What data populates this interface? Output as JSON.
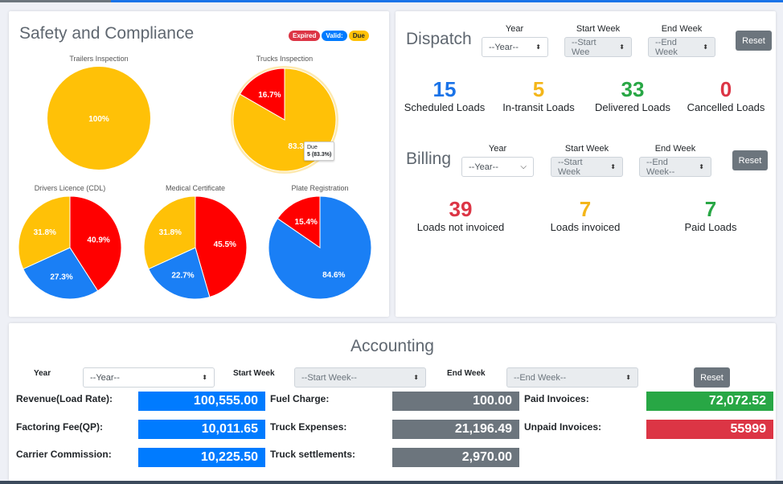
{
  "safety": {
    "title": "Safety and Compliance",
    "badges": [
      {
        "label": "Expired",
        "color": "#dc3545"
      },
      {
        "label": "Valid:",
        "color": "#007bff"
      },
      {
        "label": "Due",
        "color": "#ffc107"
      }
    ],
    "tooltip": {
      "title": "Due",
      "value": "5 (83.3%)"
    }
  },
  "chart_data": [
    {
      "type": "pie",
      "title": "Trailers Inspection",
      "slices": [
        {
          "label": "Due",
          "value": 100,
          "color": "#ffc107",
          "text": "100%"
        }
      ]
    },
    {
      "type": "pie",
      "title": "Trucks Inspection",
      "slices": [
        {
          "label": "Due",
          "value": 83.3,
          "color": "#ffc107",
          "text": "83.3%"
        },
        {
          "label": "Expired",
          "value": 16.7,
          "color": "#ff0000",
          "text": "16.7%"
        }
      ]
    },
    {
      "type": "pie",
      "title": "Drivers Licence (CDL)",
      "slices": [
        {
          "label": "Expired",
          "value": 40.9,
          "color": "#ff0000",
          "text": "40.9%"
        },
        {
          "label": "Valid",
          "value": 27.3,
          "color": "#1a7ff5",
          "text": "27.3%"
        },
        {
          "label": "Due",
          "value": 31.8,
          "color": "#ffc107",
          "text": "31.8%"
        }
      ]
    },
    {
      "type": "pie",
      "title": "Medical Certificate",
      "slices": [
        {
          "label": "Expired",
          "value": 45.5,
          "color": "#ff0000",
          "text": "45.5%"
        },
        {
          "label": "Valid",
          "value": 22.7,
          "color": "#1a7ff5",
          "text": "22.7%"
        },
        {
          "label": "Due",
          "value": 31.8,
          "color": "#ffc107",
          "text": "31.8%"
        }
      ]
    },
    {
      "type": "pie",
      "title": "Plate Registration",
      "slices": [
        {
          "label": "Valid",
          "value": 84.6,
          "color": "#1a7ff5",
          "text": "84.6%"
        },
        {
          "label": "Expired",
          "value": 15.4,
          "color": "#ff0000",
          "text": "15.4%"
        }
      ]
    }
  ],
  "dispatch": {
    "title": "Dispatch",
    "year_label": "Year",
    "year_value": "--Year--",
    "start_label": "Start Week",
    "start_value": "--Start Wee",
    "end_label": "End Week",
    "end_value": "--End Week",
    "reset": "Reset",
    "stats": [
      {
        "value": "15",
        "label": "Scheduled Loads"
      },
      {
        "value": "5",
        "label": "In-transit Loads"
      },
      {
        "value": "33",
        "label": "Delivered Loads"
      },
      {
        "value": "0",
        "label": "Cancelled Loads"
      }
    ]
  },
  "billing": {
    "title": "Billing",
    "year_label": "Year",
    "year_value": "--Year--",
    "start_label": "Start Week",
    "start_value": "--Start Week",
    "end_label": "End Week",
    "end_value": "--End Week--",
    "reset": "Reset",
    "stats": [
      {
        "value": "39",
        "label": "Loads not invoiced"
      },
      {
        "value": "7",
        "label": "Loads invoiced"
      },
      {
        "value": "7",
        "label": "Paid Loads"
      }
    ]
  },
  "accounting": {
    "title": "Accounting",
    "year_label": "Year",
    "year_value": "--Year--",
    "start_label": "Start Week",
    "start_value": "--Start Week--",
    "end_label": "End Week",
    "end_value": "--End Week--",
    "reset": "Reset",
    "rows": [
      {
        "label": "Revenue(Load Rate):",
        "value": "100,555.00"
      },
      {
        "label": "Factoring Fee(QP):",
        "value": "10,011.65"
      },
      {
        "label": "Carrier Commission:",
        "value": "10,225.50"
      },
      {
        "label": "Fuel Charge:",
        "value": "100.00"
      },
      {
        "label": "Truck Expenses:",
        "value": "21,196.49"
      },
      {
        "label": "Truck settlements:",
        "value": "2,970.00"
      },
      {
        "label": "Paid Invoices:",
        "value": "72,072.52"
      },
      {
        "label": "Unpaid Invoices:",
        "value": "55999"
      }
    ]
  }
}
